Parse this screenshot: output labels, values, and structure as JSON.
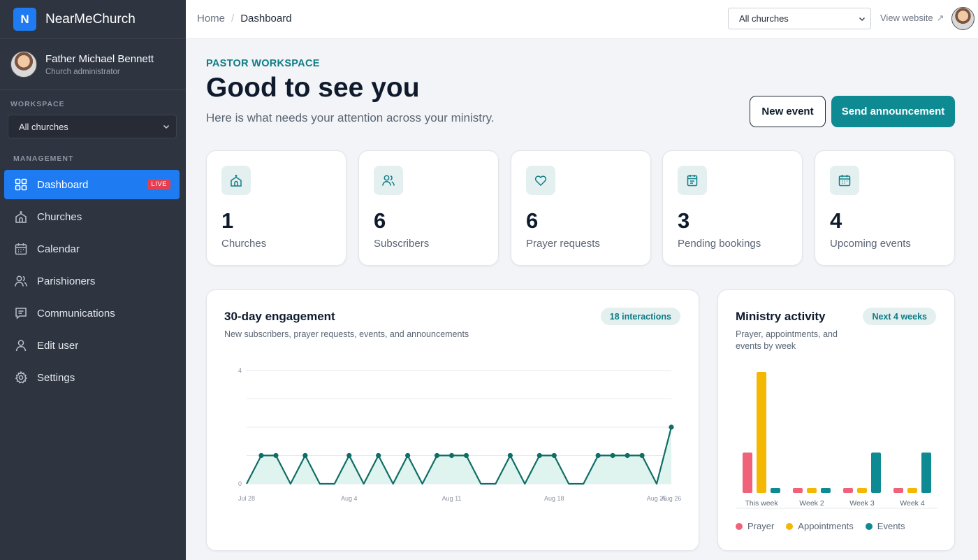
{
  "brand": {
    "initial": "N",
    "name": "NearMeChurch"
  },
  "user": {
    "name": "Father Michael Bennett",
    "role": "Church administrator"
  },
  "sidebar": {
    "workspace_label": "WORKSPACE",
    "workspace_select": "All churches",
    "management_label": "MANAGEMENT",
    "items": [
      {
        "label": "Dashboard",
        "icon": "grid-icon",
        "badge": "LIVE",
        "active": true
      },
      {
        "label": "Churches",
        "icon": "church-icon"
      },
      {
        "label": "Calendar",
        "icon": "calendar-icon"
      },
      {
        "label": "Parishioners",
        "icon": "users-icon"
      },
      {
        "label": "Communications",
        "icon": "message-icon"
      },
      {
        "label": "Edit user",
        "icon": "user-icon"
      },
      {
        "label": "Settings",
        "icon": "gear-icon"
      }
    ]
  },
  "topbar": {
    "breadcrumb_home": "Home",
    "breadcrumb_sep": "/",
    "breadcrumb_current": "Dashboard",
    "church_select": "All churches",
    "view_website": "View website",
    "view_website_icon": "↗"
  },
  "header": {
    "eyebrow": "PASTOR WORKSPACE",
    "title": "Good to see you",
    "subtitle": "Here is what needs your attention across your ministry.",
    "new_event": "New event",
    "send_announcement": "Send announcement"
  },
  "stats": [
    {
      "value": "1",
      "label": "Churches",
      "icon": "church-icon"
    },
    {
      "value": "6",
      "label": "Subscribers",
      "icon": "users-icon"
    },
    {
      "value": "6",
      "label": "Prayer requests",
      "icon": "heart-icon"
    },
    {
      "value": "3",
      "label": "Pending bookings",
      "icon": "clipboard-icon"
    },
    {
      "value": "4",
      "label": "Upcoming events",
      "icon": "calendar-icon"
    }
  ],
  "engagement": {
    "title": "30-day engagement",
    "subtitle": "New subscribers, prayer requests, events, and announcements",
    "badge": "18 interactions"
  },
  "ministry": {
    "title": "Ministry activity",
    "subtitle": "Prayer, appointments, and events by week",
    "badge": "Next 4 weeks",
    "legend": [
      "Prayer",
      "Appointments",
      "Events"
    ]
  },
  "colors": {
    "accent": "#0e8a93",
    "primary_blue": "#1e7bf2",
    "sidebar_bg": "#2e3440",
    "prayer": "#f0627a",
    "appointments": "#f5b800",
    "events": "#0e8a93",
    "line": "#0f6e66",
    "area": "#dff3ef"
  },
  "chart_data": [
    {
      "type": "area",
      "title": "30-day engagement",
      "x": [
        "Jul 28",
        "Jul 29",
        "Jul 30",
        "Jul 31",
        "Aug 1",
        "Aug 2",
        "Aug 3",
        "Aug 4",
        "Aug 5",
        "Aug 6",
        "Aug 7",
        "Aug 8",
        "Aug 9",
        "Aug 10",
        "Aug 11",
        "Aug 12",
        "Aug 13",
        "Aug 14",
        "Aug 15",
        "Aug 16",
        "Aug 17",
        "Aug 18",
        "Aug 19",
        "Aug 20",
        "Aug 21",
        "Aug 22",
        "Aug 23",
        "Aug 24",
        "Aug 25",
        "Aug 26"
      ],
      "x_tick_labels": [
        "Jul 28",
        "Aug 4",
        "Aug 11",
        "Aug 18",
        "Aug 25",
        "Aug 26"
      ],
      "series": [
        {
          "values": [
            0,
            1,
            1,
            0,
            1,
            0,
            0,
            1,
            0,
            1,
            0,
            1,
            0,
            1,
            1,
            1,
            0,
            0,
            1,
            0,
            1,
            1,
            0,
            0,
            1,
            1,
            1,
            1,
            0,
            2
          ]
        }
      ],
      "y_tick_labels": [
        "0",
        "4"
      ],
      "ylim": [
        0,
        4
      ],
      "grid": true
    },
    {
      "type": "bar",
      "title": "Ministry activity",
      "categories": [
        "This week",
        "Week 2",
        "Week 3",
        "Week 4"
      ],
      "series": [
        {
          "name": "Prayer",
          "values": [
            2,
            0,
            0,
            0
          ]
        },
        {
          "name": "Appointments",
          "values": [
            6,
            0,
            0,
            0
          ]
        },
        {
          "name": "Events",
          "values": [
            0,
            0,
            2,
            2
          ]
        }
      ],
      "ylim": [
        0,
        6
      ],
      "grid": false,
      "legend": "bottom"
    }
  ]
}
